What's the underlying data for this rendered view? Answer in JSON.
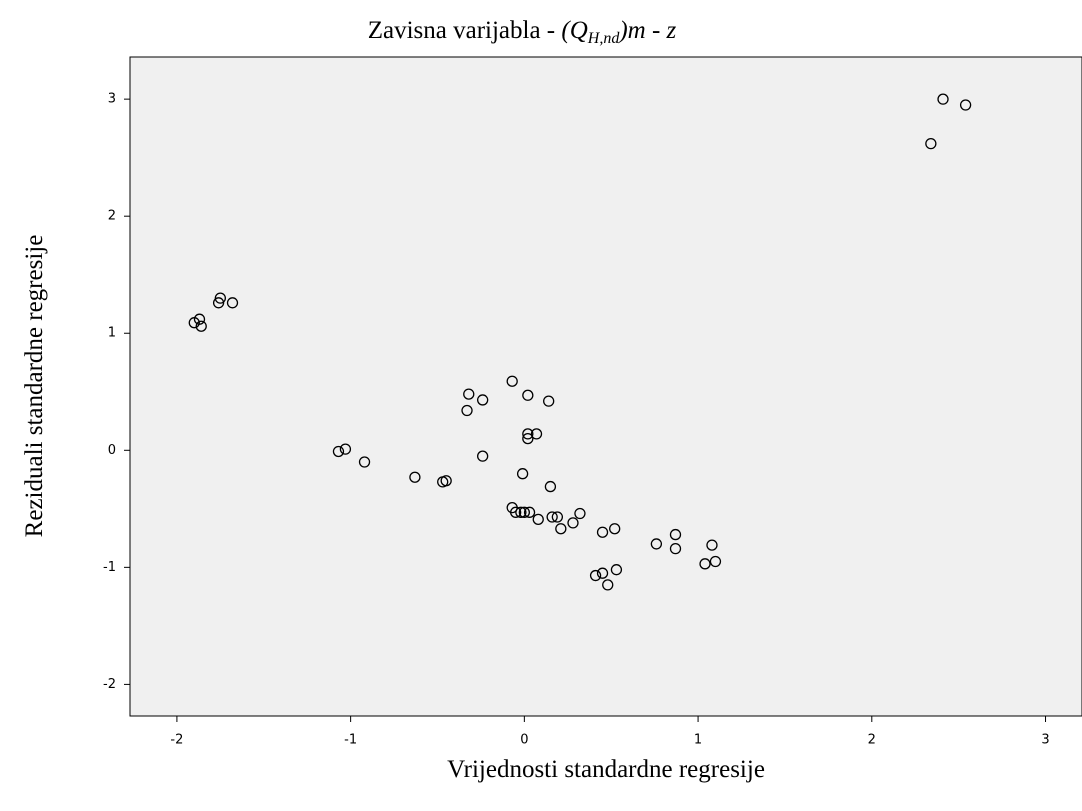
{
  "chart_data": {
    "type": "scatter",
    "title": [
      "Zavisna varijabla - ",
      "(Q",
      "H,nd",
      ")m - z"
    ],
    "x_label": "Vrijednosti standardne regresije",
    "y_label": "Reziduali standardne regresije",
    "xlim": [
      -2.27,
      3.21
    ],
    "ylim": [
      -2.27,
      3.36
    ],
    "xticks": [
      -2,
      -1,
      0,
      1,
      2,
      3
    ],
    "yticks": [
      -2,
      -1,
      0,
      1,
      2,
      3
    ],
    "x": [
      2.34,
      2.41,
      2.54,
      -1.9,
      -1.87,
      -1.86,
      -1.76,
      -1.75,
      -1.68,
      -1.07,
      -1.03,
      -0.92,
      -0.63,
      -0.47,
      -0.45,
      -0.32,
      -0.33,
      -0.24,
      -0.24,
      -0.07,
      0.02,
      0.14,
      0.02,
      0.02,
      0.07,
      -0.01,
      0.15,
      -0.07,
      -0.05,
      -0.02,
      0,
      0.03,
      0.08,
      0.16,
      0.19,
      0.21,
      0.28,
      0.32,
      0.45,
      0.52,
      0.76,
      0.87,
      0.87,
      1.08,
      1.04,
      1.1,
      0.41,
      0.45,
      0.48,
      0.53
    ],
    "values": [
      2.62,
      3.0,
      2.95,
      1.09,
      1.12,
      1.06,
      1.26,
      1.3,
      1.26,
      -0.01,
      0.01,
      -0.1,
      -0.23,
      -0.27,
      -0.26,
      0.48,
      0.34,
      0.43,
      -0.05,
      0.59,
      0.47,
      0.42,
      0.14,
      0.1,
      0.14,
      -0.2,
      -0.31,
      -0.49,
      -0.53,
      -0.53,
      -0.53,
      -0.53,
      -0.59,
      -0.57,
      -0.57,
      -0.67,
      -0.62,
      -0.54,
      -0.7,
      -0.67,
      -0.8,
      -0.72,
      -0.84,
      -0.81,
      -0.97,
      -0.95,
      -1.07,
      -1.05,
      -1.15,
      -1.02
    ],
    "color": "#000000",
    "background": "#f0f0f0"
  }
}
